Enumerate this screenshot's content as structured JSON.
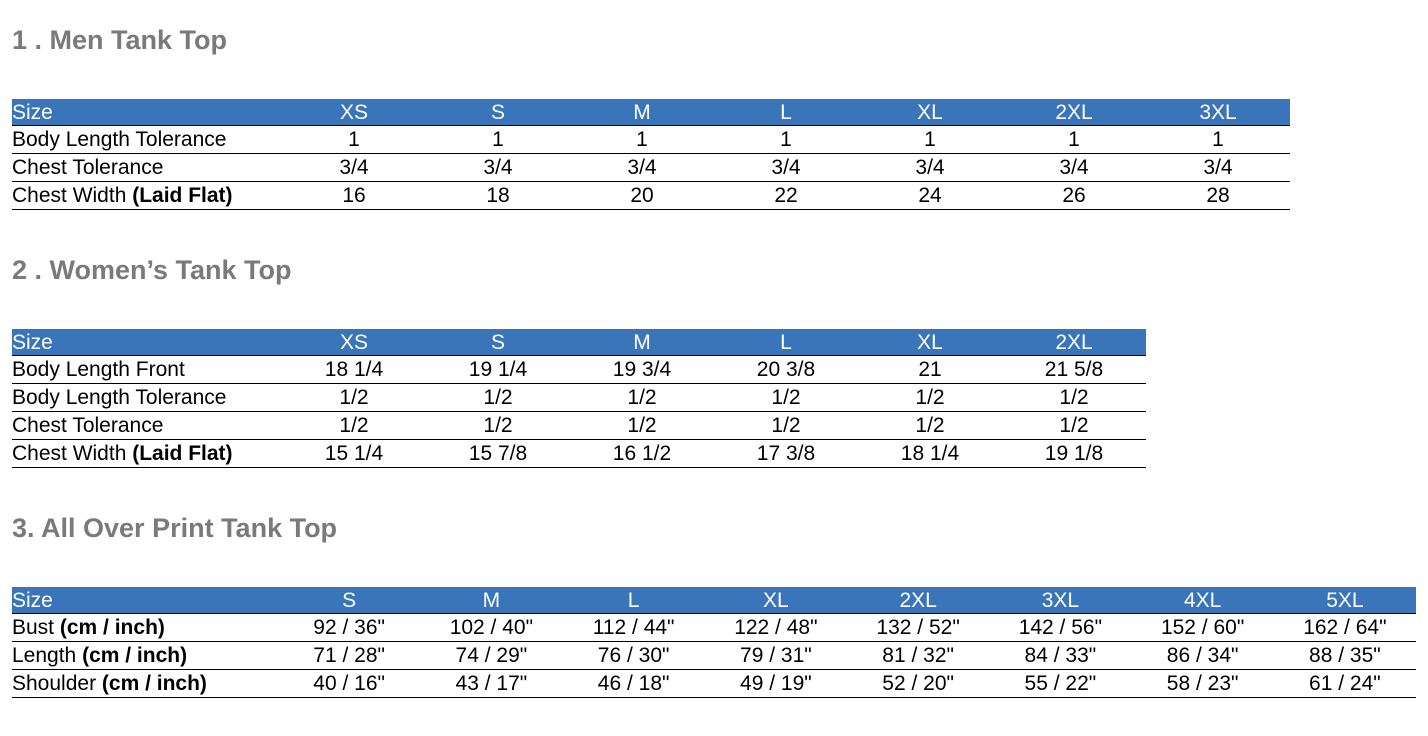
{
  "sections": [
    {
      "title": "1 . Men Tank Top",
      "table": {
        "header": [
          "Size",
          "XS",
          "S",
          "M",
          "L",
          "XL",
          "2XL",
          "3XL"
        ],
        "rows": [
          {
            "label": {
              "name": "Body Length Tolerance"
            },
            "cells": [
              "1",
              "1",
              "1",
              "1",
              "1",
              "1",
              "1"
            ]
          },
          {
            "label": {
              "name": "Chest Tolerance"
            },
            "cells": [
              "3/4",
              "3/4",
              "3/4",
              "3/4",
              "3/4",
              "3/4",
              "3/4"
            ]
          },
          {
            "label": {
              "name": "Chest Width",
              "unit": "(Laid Flat)"
            },
            "cells": [
              "16",
              "18",
              "20",
              "22",
              "24",
              "26",
              "28"
            ]
          }
        ]
      }
    },
    {
      "title": "2 . Women’s Tank Top",
      "table": {
        "header": [
          "Size",
          "XS",
          "S",
          "M",
          "L",
          "XL",
          "2XL"
        ],
        "rows": [
          {
            "label": {
              "name": "Body Length Front"
            },
            "cells": [
              "18 1/4",
              "19 1/4",
              "19 3/4",
              "20 3/8",
              "21",
              "21 5/8"
            ]
          },
          {
            "label": {
              "name": "Body Length Tolerance"
            },
            "cells": [
              "1/2",
              "1/2",
              "1/2",
              "1/2",
              "1/2",
              "1/2"
            ]
          },
          {
            "label": {
              "name": "Chest Tolerance"
            },
            "cells": [
              "1/2",
              "1/2",
              "1/2",
              "1/2",
              "1/2",
              "1/2"
            ]
          },
          {
            "label": {
              "name": "Chest Width",
              "unit": "(Laid Flat)"
            },
            "cells": [
              "15 1/4",
              "15 7/8",
              "16 1/2",
              "17 3/8",
              "18 1/4",
              "19 1/8"
            ]
          }
        ]
      }
    },
    {
      "title": "3. All Over Print Tank Top",
      "table": {
        "header": [
          "Size",
          "S",
          "M",
          "L",
          "XL",
          "2XL",
          "3XL",
          "4XL",
          "5XL"
        ],
        "rows": [
          {
            "label": {
              "name": "Bust",
              "unit": "(cm / inch)"
            },
            "cells": [
              "92 / 36\"",
              "102 / 40\"",
              "112 / 44\"",
              "122 / 48\"",
              "132 / 52\"",
              "142 / 56\"",
              "152 / 60\"",
              "162 / 64\""
            ]
          },
          {
            "label": {
              "name": "Length",
              "unit": "(cm / inch)"
            },
            "cells": [
              "71 / 28\"",
              "74 / 29\"",
              "76 / 30\"",
              "79 / 31\"",
              "81 / 32\"",
              "84 / 33\"",
              "86 / 34\"",
              "88 / 35\""
            ]
          },
          {
            "label": {
              "name": "Shoulder",
              "unit": "(cm / inch)"
            },
            "cells": [
              "40 / 16\"",
              "43 / 17\"",
              "46 / 18\"",
              "49 / 19\"",
              "52 / 20\"",
              "55 / 22\"",
              "58 / 23\"",
              "61 / 24\""
            ]
          }
        ]
      }
    }
  ]
}
